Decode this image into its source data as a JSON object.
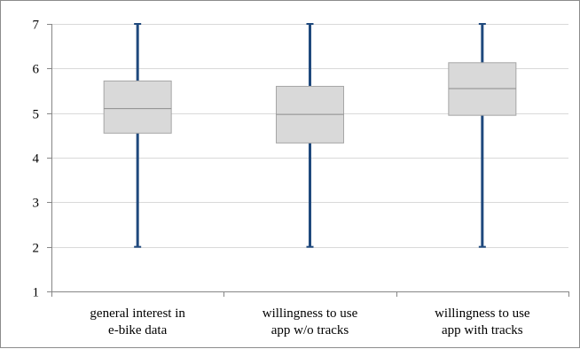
{
  "chart_data": {
    "type": "boxplot",
    "title": "",
    "xlabel": "",
    "ylabel": "",
    "ylim": [
      1,
      7
    ],
    "yticks": [
      1,
      2,
      3,
      4,
      5,
      6,
      7
    ],
    "grid": "horizontal",
    "legend": "none",
    "categories": [
      [
        "general interest in",
        "e-bike data"
      ],
      [
        "willingness to use",
        "app w/o tracks"
      ],
      [
        "willingness to use",
        "app with tracks"
      ]
    ],
    "boxes": [
      {
        "min": 2,
        "q1": 4.55,
        "median": 5.1,
        "q3": 5.72,
        "max": 7
      },
      {
        "min": 2,
        "q1": 4.33,
        "median": 4.97,
        "q3": 5.6,
        "max": 7
      },
      {
        "min": 2,
        "q1": 4.95,
        "median": 5.55,
        "q3": 6.13,
        "max": 7
      }
    ],
    "colors": {
      "box_fill": "#d9d9d9",
      "box_stroke": "#a6a6a6",
      "median": "#8c8c8c",
      "whisker": "#1f497d",
      "grid": "#d9d9d9",
      "axis": "#868686"
    }
  }
}
